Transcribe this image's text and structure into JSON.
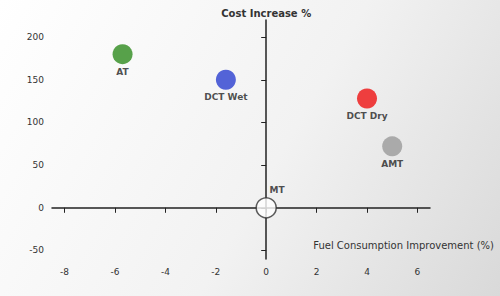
{
  "chart_data": {
    "type": "scatter",
    "xlabel": "Fuel Consumption Improvement (%)",
    "ylabel": "Cost Increase %",
    "points": [
      {
        "label": "AT",
        "x": -5.7,
        "y": 180,
        "color": "#2e8b1e"
      },
      {
        "label": "DCT Wet",
        "x": -1.6,
        "y": 150,
        "color": "#2a3fd0"
      },
      {
        "label": "DCT Dry",
        "x": 4,
        "y": 128,
        "color": "#ee1111"
      },
      {
        "label": "AMT",
        "x": 5,
        "y": 72,
        "color": "#9a9a9a"
      },
      {
        "label": "MT",
        "x": 0,
        "y": 0,
        "color": "#ffffff"
      }
    ],
    "xlim": [
      -8.5,
      6.5
    ],
    "xticks": [
      -8,
      -6,
      -4,
      -2,
      0,
      2,
      4,
      6
    ],
    "ylim": [
      -60,
      220
    ],
    "yticks": [
      -50,
      0,
      50,
      100,
      150,
      200
    ],
    "grid": false
  }
}
